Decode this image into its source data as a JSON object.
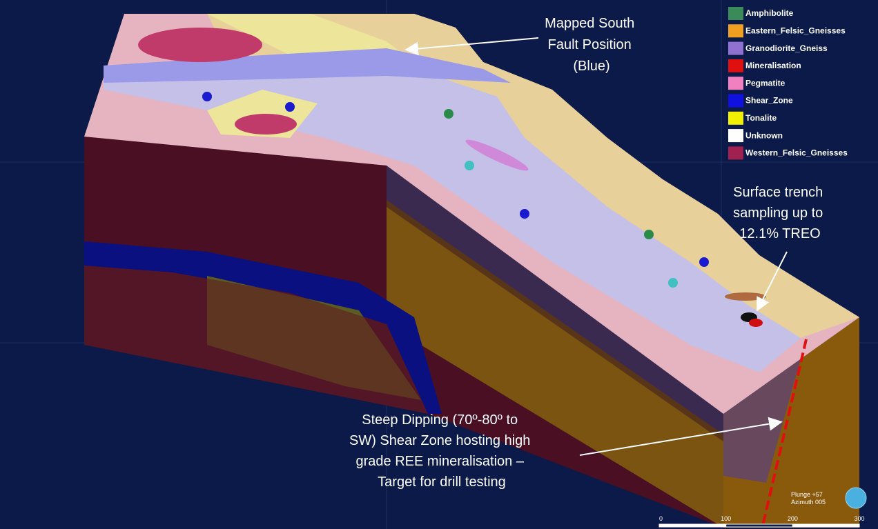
{
  "legend": {
    "items": [
      {
        "name": "Amphibolite",
        "color": "#3a8a5a"
      },
      {
        "name": "Eastern_Felsic_Gneisses",
        "color": "#f0a020"
      },
      {
        "name": "Granodiorite_Gneiss",
        "color": "#9070d0"
      },
      {
        "name": "Mineralisation",
        "color": "#e01010"
      },
      {
        "name": "Pegmatite",
        "color": "#f080c0"
      },
      {
        "name": "Shear_Zone",
        "color": "#1010e0"
      },
      {
        "name": "Tonalite",
        "color": "#f0f000"
      },
      {
        "name": "Unknown",
        "color": "#ffffff"
      },
      {
        "name": "Western_Felsic_Gneisses",
        "color": "#a02050"
      }
    ]
  },
  "annotations": {
    "fault": [
      "Mapped South",
      "Fault Position",
      "(Blue)"
    ],
    "trench": [
      "Surface trench",
      "sampling up to",
      "12.1% TREO"
    ],
    "shear": [
      "Steep Dipping (70º-80º to",
      "SW) Shear Zone hosting high",
      "grade REE mineralisation –",
      "Target for drill testing"
    ]
  },
  "view": {
    "plunge": "Plunge +57",
    "azimuth": "Azimuth 005"
  },
  "scale_bar": {
    "labels": [
      "0",
      "100",
      "200",
      "300"
    ]
  }
}
